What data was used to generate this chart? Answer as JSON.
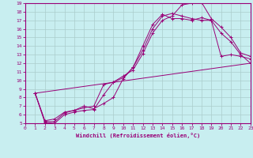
{
  "xlabel": "Windchill (Refroidissement éolien,°C)",
  "xlim": [
    0,
    23
  ],
  "ylim": [
    5,
    19
  ],
  "xticks": [
    0,
    1,
    2,
    3,
    4,
    5,
    6,
    7,
    8,
    9,
    10,
    11,
    12,
    13,
    14,
    15,
    16,
    17,
    18,
    19,
    20,
    21,
    22,
    23
  ],
  "yticks": [
    5,
    6,
    7,
    8,
    9,
    10,
    11,
    12,
    13,
    14,
    15,
    16,
    17,
    18,
    19
  ],
  "bg_color": "#c8eef0",
  "grid_color": "#aacccc",
  "line_color": "#990077",
  "curves": [
    {
      "x": [
        1,
        2,
        3,
        4,
        5,
        6,
        7,
        8,
        9,
        10,
        11,
        12,
        13,
        14,
        15,
        16,
        17,
        18,
        19,
        20,
        21,
        22,
        23
      ],
      "y": [
        8.5,
        5.1,
        5.0,
        6.0,
        6.3,
        6.5,
        6.6,
        8.3,
        9.8,
        10.5,
        11.2,
        13.1,
        15.5,
        17.0,
        17.5,
        18.8,
        19.0,
        19.1,
        17.2,
        16.2,
        15.0,
        13.2,
        12.8
      ],
      "marker": true
    },
    {
      "x": [
        1,
        2,
        3,
        4,
        5,
        6,
        7,
        8,
        9,
        10,
        11,
        12,
        13,
        14,
        15,
        16,
        17,
        18,
        19,
        20,
        21,
        22,
        23
      ],
      "y": [
        8.5,
        5.2,
        5.2,
        6.2,
        6.5,
        6.8,
        7.0,
        9.5,
        9.8,
        10.3,
        11.5,
        13.5,
        16.0,
        17.5,
        17.8,
        17.5,
        17.2,
        17.0,
        17.0,
        12.8,
        13.0,
        12.8,
        12.5
      ],
      "marker": true
    },
    {
      "x": [
        1,
        2,
        3,
        4,
        5,
        6,
        7,
        8,
        9,
        10,
        11,
        12,
        13,
        14,
        15,
        16,
        17,
        18,
        19,
        20,
        21,
        22,
        23
      ],
      "y": [
        8.5,
        5.3,
        5.5,
        6.3,
        6.5,
        7.0,
        6.7,
        7.3,
        8.0,
        10.2,
        11.5,
        14.0,
        16.5,
        17.7,
        17.2,
        17.2,
        17.0,
        17.3,
        17.0,
        15.5,
        14.5,
        13.0,
        12.0
      ],
      "marker": true
    },
    {
      "x": [
        1,
        23
      ],
      "y": [
        8.5,
        12.0
      ],
      "marker": false
    }
  ]
}
